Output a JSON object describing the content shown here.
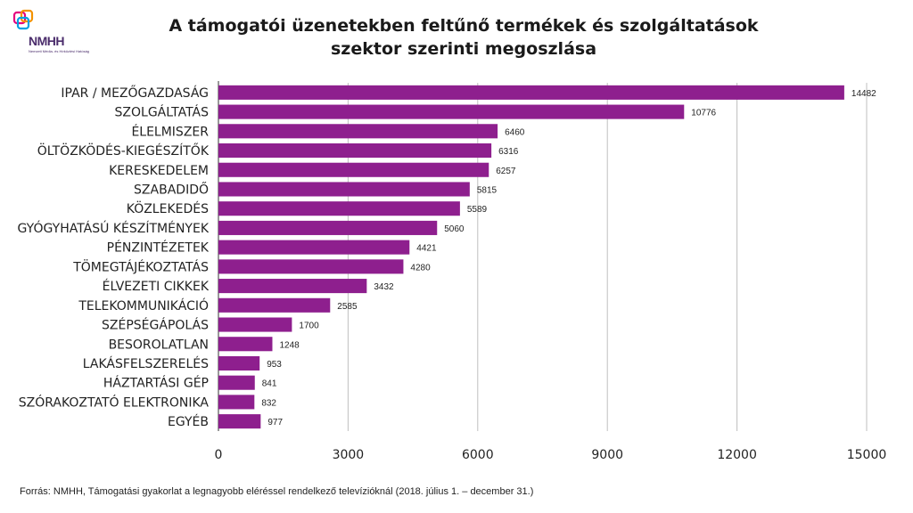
{
  "logo": {
    "text": "NMHH",
    "subtitle": "Nemzeti Média- és Hírközlési Hatóság",
    "colors": {
      "primary": "#4a2c6b",
      "accent1": "#e5007e",
      "accent2": "#f39200",
      "accent3": "#00a0e3"
    }
  },
  "colors": {
    "bar": "#8e1f8e",
    "grid": "#bfbfbf",
    "axis": "#333333"
  },
  "chart_data": {
    "type": "bar",
    "orientation": "horizontal",
    "title": "A támogatói üzenetekben feltűnő termékek és szolgáltatások",
    "subtitle": "szektor szerinti megoszlása",
    "categories": [
      "IPAR / MEZŐGAZDASÁG",
      "SZOLGÁLTATÁS",
      "ÉLELMISZER",
      "ÖLTÖZKÖDÉS-KIEGÉSZÍTŐK",
      "KERESKEDELEM",
      "SZABADIDŐ",
      "KÖZLEKEDÉS",
      "GYÓGYHATÁSÚ KÉSZÍTMÉNYEK",
      "PÉNZINTÉZETEK",
      "TÖMEGTÁJÉKOZTATÁS",
      "ÉLVEZETI CIKKEK",
      "TELEKOMMUNIKÁCIÓ",
      "SZÉPSÉGÁPOLÁS",
      "BESOROLATLAN",
      "LAKÁSFELSZERELÉS",
      "HÁZTARTÁSI GÉP",
      "SZÓRAKOZTATÓ ELEKTRONIKA",
      "EGYÉB"
    ],
    "values": [
      14482,
      10776,
      6460,
      6316,
      6257,
      5815,
      5589,
      5060,
      4421,
      4280,
      3432,
      2585,
      1700,
      1248,
      953,
      841,
      832,
      977
    ],
    "xlim": [
      0,
      15000
    ],
    "xticks": [
      0,
      3000,
      6000,
      9000,
      12000,
      15000
    ],
    "xlabel": "",
    "ylabel": "",
    "grid": true
  },
  "source": "Forrás: NMHH, Támogatási gyakorlat a legnagyobb eléréssel rendelkező televízióknál (2018. július 1. – december 31.)"
}
